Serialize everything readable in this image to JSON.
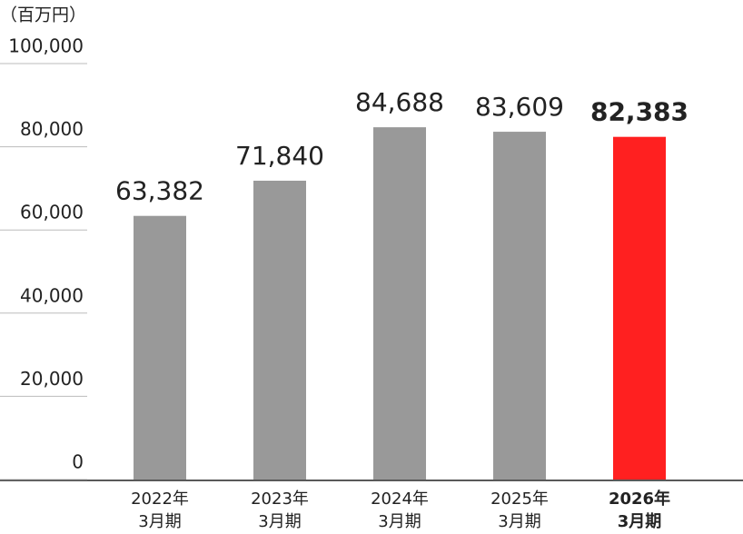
{
  "chart_data": {
    "type": "bar",
    "unit_label": "（百万円）",
    "categories": [
      [
        "2022年",
        "3月期"
      ],
      [
        "2023年",
        "3月期"
      ],
      [
        "2024年",
        "3月期"
      ],
      [
        "2025年",
        "3月期"
      ],
      [
        "2026年",
        "3月期"
      ]
    ],
    "values": [
      63382,
      71840,
      84688,
      83609,
      82383
    ],
    "value_labels": [
      "63,382",
      "71,840",
      "84,688",
      "83,609",
      "82,383"
    ],
    "colors": [
      "#999999",
      "#999999",
      "#999999",
      "#999999",
      "#ff2020"
    ],
    "emphasis": [
      false,
      false,
      false,
      false,
      true
    ],
    "ylim": [
      0,
      100000
    ],
    "yticks": [
      0,
      {
        "value": 20000,
        "label": "20,000"
      },
      {
        "value": 40000,
        "label": "40,000"
      },
      {
        "value": 60000,
        "label": "60,000"
      },
      {
        "value": 80000,
        "label": "80,000"
      },
      {
        "value": 100000,
        "label": "100,000"
      }
    ],
    "grid": true
  }
}
